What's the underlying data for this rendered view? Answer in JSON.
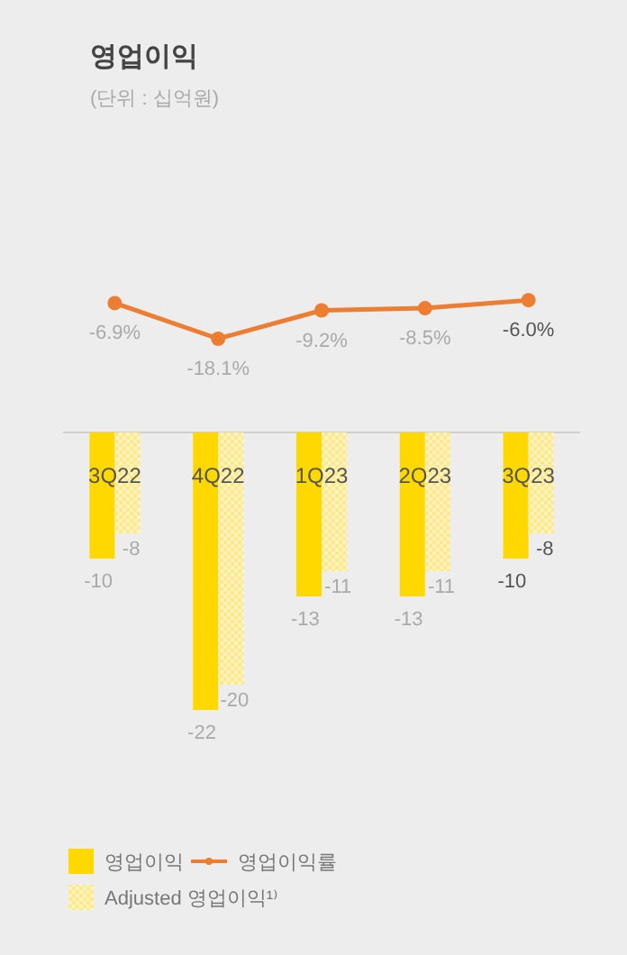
{
  "chart_data": [
    {
      "type": "line",
      "title": "영업이익",
      "subtitle": "(단위 : 십억원)",
      "categories": [
        null,
        null,
        null,
        null,
        null
      ],
      "series": [
        {
          "name": "영업이익률",
          "color": "#ed7d31",
          "values": [
            -6.9,
            -18.1,
            -9.2,
            -8.5,
            -6.0
          ],
          "value_labels": [
            "-6.9%",
            "-18.1%",
            "-9.2%",
            "-8.5%",
            "-6.0%"
          ]
        }
      ],
      "marker": "circle",
      "tick_labels": false,
      "legend": "bottom left"
    },
    {
      "type": "bar",
      "categories": [
        "3Q22",
        "4Q22",
        "1Q23",
        "2Q23",
        "3Q23"
      ],
      "series": [
        {
          "name": "영업이익",
          "color": "#ffd800",
          "values": [
            -10,
            -22,
            -13,
            -13,
            -10
          ]
        },
        {
          "name": "Adjusted 영업이익¹⁾",
          "color": "#fde98a",
          "values": [
            -8,
            -20,
            -11,
            -11,
            -8
          ]
        }
      ],
      "data_labels": true,
      "tick_labels": "x",
      "legend": "bottom left"
    }
  ]
}
